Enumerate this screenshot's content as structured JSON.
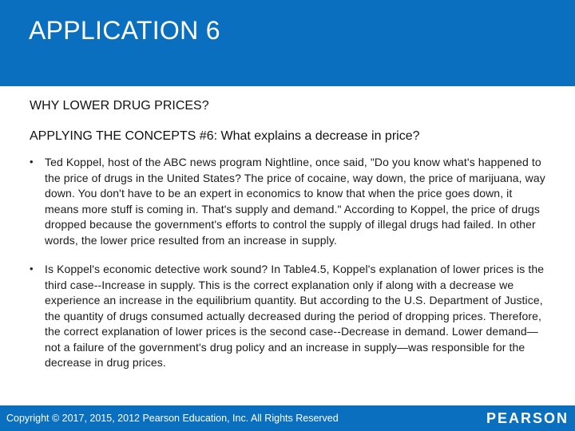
{
  "header": {
    "title": "APPLICATION 6"
  },
  "subtitle": "WHY LOWER DRUG PRICES?",
  "concept": "APPLYING THE CONCEPTS #6: What explains a decrease in price?",
  "bullets": [
    {
      "marker": "•",
      "text": "Ted Koppel, host of the ABC news program Nightline, once said, \"Do you know what's happened to the price of drugs in the United States? The price of cocaine, way down, the price of marijuana, way down. You don't have to be an expert in economics to know that when the price goes down, it means more stuff is coming in. That's supply and demand.\" According to Koppel, the price of drugs dropped because the government's efforts to control the supply of illegal drugs had failed. In other words, the lower price resulted from an increase in supply."
    },
    {
      "marker": "•",
      "text": "Is Koppel's economic detective work sound? In Table4.5, Koppel's explanation of lower prices is the third case--Increase in supply. This is the correct explanation only if along with a decrease we experience an increase in the equilibrium quantity. But according to the U.S. Department of Justice, the quantity of drugs consumed actually decreased during the period of dropping prices. Therefore, the correct explanation of lower prices is the second case--Decrease in demand. Lower demand—not a failure of the government's drug policy and an increase in supply—was responsible for the decrease in drug prices."
    }
  ],
  "footer": {
    "copyright": "Copyright © 2017, 2015, 2012 Pearson Education, Inc. All Rights Reserved",
    "logo": "PEARSON"
  },
  "colors": {
    "brand_blue": "#0b6fbf"
  }
}
